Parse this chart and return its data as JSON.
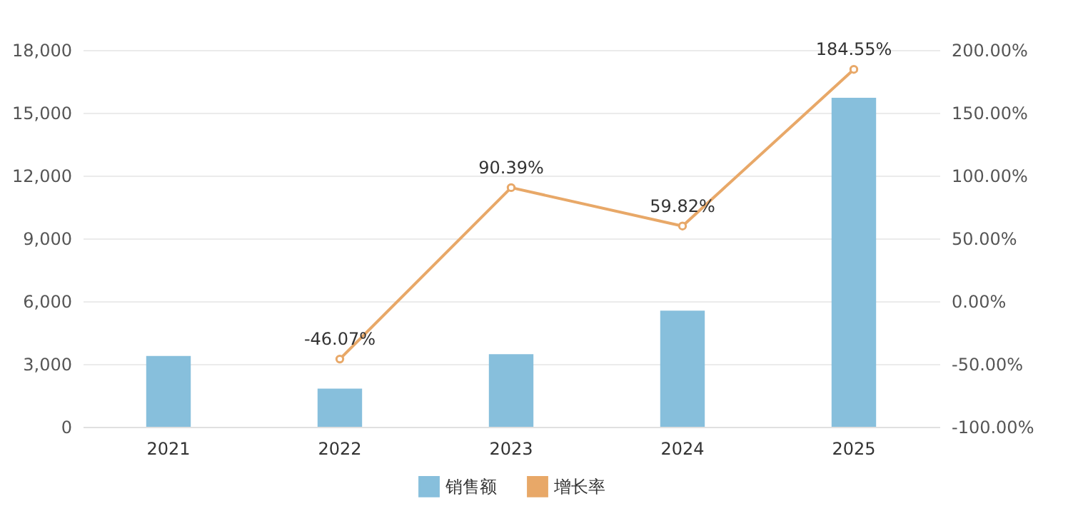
{
  "chart_data": {
    "type": "bar",
    "categories": [
      "2021",
      "2022",
      "2023",
      "2024",
      "2025"
    ],
    "series": [
      {
        "name": "销售额",
        "type": "bar",
        "color": "#87bfdc",
        "values": [
          3380,
          1820,
          3470,
          5550,
          15720
        ]
      },
      {
        "name": "增长率",
        "type": "line",
        "axis": "y2",
        "color": "#e8a868",
        "line_style": "solid",
        "marker": "circle",
        "values": [
          null,
          -46.07,
          90.39,
          59.82,
          184.55
        ],
        "value_labels": [
          null,
          "-46.07%",
          "90.39%",
          "59.82%",
          "184.55%"
        ]
      }
    ],
    "ylim": [
      0,
      18000
    ],
    "yticks": [
      {
        "value": 0,
        "label": "0"
      },
      {
        "value": 3000,
        "label": "3,000"
      },
      {
        "value": 6000,
        "label": "6,000"
      },
      {
        "value": 9000,
        "label": "9,000"
      },
      {
        "value": 12000,
        "label": "12,000"
      },
      {
        "value": 15000,
        "label": "15,000"
      },
      {
        "value": 18000,
        "label": "18,000"
      }
    ],
    "y2lim": [
      -100,
      200
    ],
    "y2ticks": [
      {
        "value": -100,
        "label": "-100.00%"
      },
      {
        "value": -50,
        "label": "-50.00%"
      },
      {
        "value": 0,
        "label": "0.00%"
      },
      {
        "value": 50,
        "label": "50.00%"
      },
      {
        "value": 100,
        "label": "100.00%"
      },
      {
        "value": 150,
        "label": "150.00%"
      },
      {
        "value": 200,
        "label": "200.00%"
      }
    ],
    "grid": "y",
    "legend": "bottom"
  }
}
